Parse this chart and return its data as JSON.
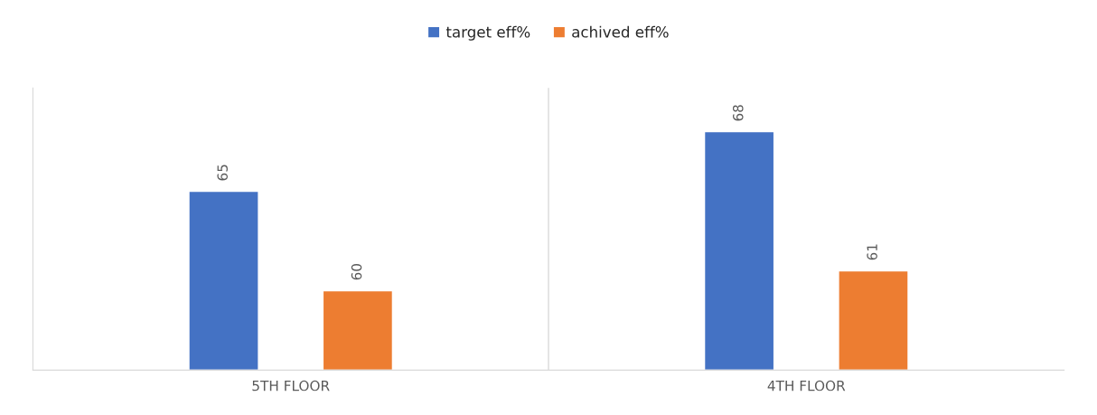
{
  "chart_data": {
    "type": "bar",
    "categories": [
      "5TH FLOOR",
      "4TH FLOOR"
    ],
    "series": [
      {
        "name": "target eff%",
        "color": "#4472c4",
        "values": [
          65,
          68
        ]
      },
      {
        "name": "achived eff%",
        "color": "#ed7d31",
        "values": [
          60,
          61
        ]
      }
    ],
    "ylim": [
      56,
      70.2
    ],
    "tick_labels": "x",
    "data_labels": true,
    "legend": "top",
    "grid": false
  }
}
